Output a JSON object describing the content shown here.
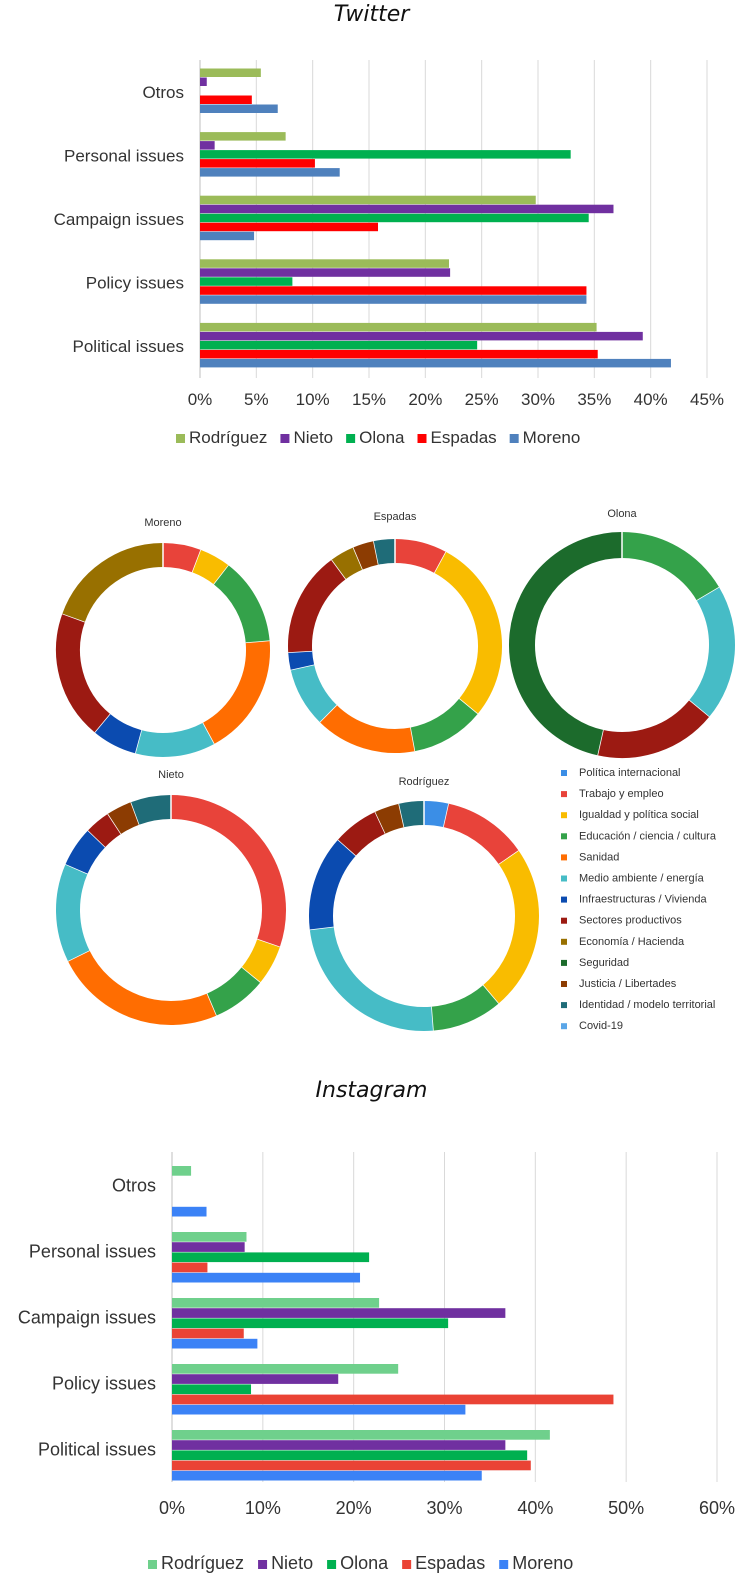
{
  "titles": {
    "twitter": "Twitter",
    "instagram": "Instagram"
  },
  "chart_data": [
    {
      "id": "twitter-bars",
      "type": "bar",
      "orientation": "horizontal",
      "title": "Twitter",
      "categories": [
        "Otros",
        "Personal issues",
        "Campaign issues",
        "Policy issues",
        "Political issues"
      ],
      "xlim": [
        0,
        45
      ],
      "ticks": [
        "0%",
        "5%",
        "10%",
        "15%",
        "20%",
        "25%",
        "30%",
        "35%",
        "40%",
        "45%"
      ],
      "tick_values": [
        0,
        5,
        10,
        15,
        20,
        25,
        30,
        35,
        40,
        45
      ],
      "grid": true,
      "legend_position": "bottom",
      "series": [
        {
          "name": "Rodríguez",
          "color": "#9bbb59",
          "values": [
            5.4,
            7.6,
            29.8,
            22.1,
            35.2
          ]
        },
        {
          "name": "Nieto",
          "color": "#7030a0",
          "values": [
            0.6,
            1.3,
            36.7,
            22.2,
            39.3
          ]
        },
        {
          "name": "Olona",
          "color": "#00b050",
          "values": [
            0.0,
            32.9,
            34.5,
            8.2,
            24.6
          ]
        },
        {
          "name": "Espadas",
          "color": "#ff0000",
          "values": [
            4.6,
            10.2,
            15.8,
            34.3,
            35.3
          ]
        },
        {
          "name": "Moreno",
          "color": "#4f81bd",
          "values": [
            6.9,
            12.4,
            4.8,
            34.3,
            41.8
          ]
        }
      ]
    },
    {
      "id": "topic-donuts",
      "type": "pie",
      "variant": "donut",
      "legend_position": "right",
      "topics": [
        {
          "name": "Política internacional",
          "color": "#3b8ee6"
        },
        {
          "name": "Trabajo y empleo",
          "color": "#e8433a"
        },
        {
          "name": "Igualdad y política social",
          "color": "#f9bc00"
        },
        {
          "name": "Educación / ciencia / cultura",
          "color": "#34a24a"
        },
        {
          "name": "Sanidad",
          "color": "#ff6d01"
        },
        {
          "name": "Medio ambiente / energía",
          "color": "#46bcc6"
        },
        {
          "name": "Infraestructuras / Vivienda",
          "color": "#0b4bb0"
        },
        {
          "name": "Sectores productivos",
          "color": "#9c1a12"
        },
        {
          "name": "Economía / Hacienda",
          "color": "#987000"
        },
        {
          "name": "Seguridad",
          "color": "#1c6b2c"
        },
        {
          "name": "Justicia / Libertades",
          "color": "#8c3c02"
        },
        {
          "name": "Identidad / modelo territorial",
          "color": "#1f6c78"
        },
        {
          "name": "Covid-19",
          "color": "#5aa6e8"
        }
      ],
      "donuts": [
        {
          "name": "Moreno",
          "slices": [
            0,
            5.5,
            4.5,
            12.5,
            17.5,
            11.5,
            6.5,
            18.5,
            18.5,
            0,
            0,
            0,
            0
          ]
        },
        {
          "name": "Espadas",
          "slices": [
            0,
            7.5,
            26.5,
            10.5,
            14.5,
            8.5,
            2.5,
            15.0,
            3.5,
            0,
            3.0,
            3.0,
            0
          ]
        },
        {
          "name": "Olona",
          "slices": [
            0,
            0,
            0,
            16.5,
            0,
            19.5,
            0,
            17.5,
            0,
            46.5,
            0,
            0,
            0
          ]
        },
        {
          "name": "Nieto",
          "slices": [
            0,
            29.5,
            5.5,
            7.5,
            23.5,
            13.5,
            5.5,
            3.5,
            0,
            0,
            3.5,
            5.5,
            0
          ]
        },
        {
          "name": "Rodríguez",
          "slices": [
            3.5,
            12.0,
            23.5,
            10.0,
            0,
            24.5,
            13.5,
            6.5,
            0,
            0,
            3.5,
            3.5,
            0
          ]
        }
      ]
    },
    {
      "id": "instagram-bars",
      "type": "bar",
      "orientation": "horizontal",
      "title": "Instagram",
      "categories": [
        "Otros",
        "Personal issues",
        "Campaign issues",
        "Policy issues",
        "Political issues"
      ],
      "xlim": [
        0,
        60
      ],
      "ticks": [
        "0%",
        "10%",
        "20%",
        "30%",
        "40%",
        "50%",
        "60%"
      ],
      "tick_values": [
        0,
        10,
        20,
        30,
        40,
        50,
        60
      ],
      "grid": true,
      "legend_position": "bottom",
      "series": [
        {
          "name": "Rodríguez",
          "color": "#6fd08c",
          "values": [
            2.1,
            8.2,
            22.8,
            24.9,
            41.6
          ]
        },
        {
          "name": "Nieto",
          "color": "#7030a0",
          "values": [
            0,
            8.0,
            36.7,
            18.3,
            36.7
          ]
        },
        {
          "name": "Olona",
          "color": "#00b050",
          "values": [
            0,
            21.7,
            30.4,
            8.7,
            39.1
          ]
        },
        {
          "name": "Espadas",
          "color": "#ea4335",
          "values": [
            0,
            3.9,
            7.9,
            48.6,
            39.5
          ]
        },
        {
          "name": "Moreno",
          "color": "#3b82f6",
          "values": [
            3.8,
            20.7,
            9.4,
            32.3,
            34.1
          ]
        }
      ]
    }
  ]
}
